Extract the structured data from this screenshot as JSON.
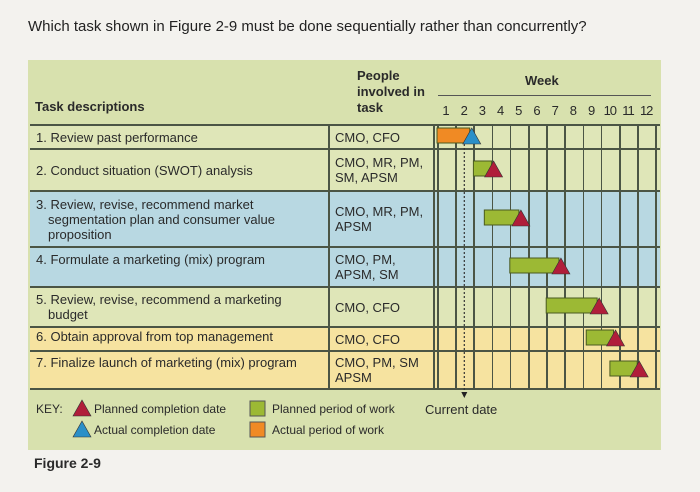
{
  "question": "Which task shown in Figure 2-9 must be done sequentially rather than concurrently?",
  "figure_label": "Figure 2-9",
  "chart_data": {
    "type": "bar",
    "subtype": "gantt",
    "headers": {
      "task": "Task descriptions",
      "people": "People involved in task",
      "week": "Week"
    },
    "weeks": [
      "1",
      "2",
      "3",
      "4",
      "5",
      "6",
      "7",
      "8",
      "9",
      "10",
      "11",
      "12"
    ],
    "current_date_week": 2.5,
    "tasks": [
      {
        "label": "1. Review past performance",
        "people": "CMO, CFO",
        "bg": "#dfe6b8",
        "start": 1.0,
        "end": 2.8,
        "bar": "actual",
        "marker": "actual"
      },
      {
        "label": "2. Conduct situation (SWOT) analysis",
        "people": "CMO, MR, PM, SM, APSM",
        "bg": "#dfe6b8",
        "start": 3.0,
        "end": 4.0,
        "bar": "planned",
        "marker": "planned"
      },
      {
        "label": "3. Review, revise, recommend market segmentation plan and consumer value proposition",
        "people": "CMO, MR, PM, APSM",
        "bg": "#b8d8e2",
        "start": 3.6,
        "end": 5.5,
        "bar": "planned",
        "marker": "planned"
      },
      {
        "label": "4. Formulate a marketing (mix) program",
        "people": "CMO, PM, APSM, SM",
        "bg": "#b8d8e2",
        "start": 5.0,
        "end": 7.7,
        "bar": "planned",
        "marker": "planned"
      },
      {
        "label": "5. Review, revise, recommend a marketing budget",
        "people": "CMO, CFO",
        "bg": "#dfe6b8",
        "start": 7.0,
        "end": 9.8,
        "bar": "planned",
        "marker": "planned"
      },
      {
        "label": "6. Obtain approval from top management",
        "people": "CMO, CFO",
        "bg": "#f6e3a0",
        "start": 9.2,
        "end": 10.7,
        "bar": "planned",
        "marker": "planned"
      },
      {
        "label": "7. Finalize launch of marketing (mix) program",
        "people": "CMO, PM, SM APSM",
        "bg": "#f6e3a0",
        "start": 10.5,
        "end": 12.0,
        "bar": "planned",
        "marker": "planned"
      }
    ],
    "legend": {
      "key_label": "KEY:",
      "planned_completion": "Planned completion date",
      "actual_completion": "Actual completion date",
      "planned_period": "Planned period of work",
      "actual_period": "Actual period of work",
      "current_date": "Current date"
    },
    "colors": {
      "planned_bar": "#9cb934",
      "actual_bar": "#f08a24",
      "planned_marker": "#b01e3a",
      "actual_marker": "#2a8fc8"
    }
  }
}
